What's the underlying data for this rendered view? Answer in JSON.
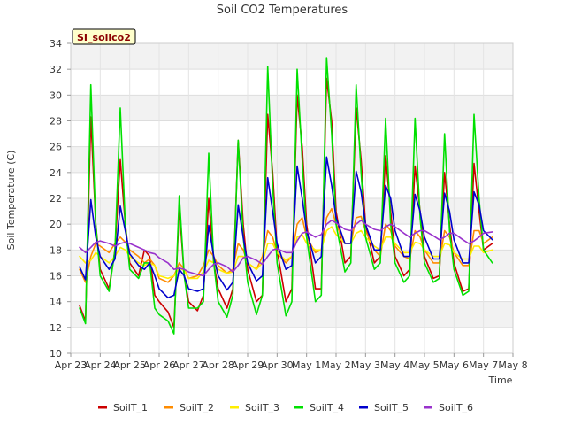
{
  "chart_data": {
    "type": "line",
    "title": "Soil CO2 Temperatures",
    "xlabel": "Time",
    "ylabel": "Soil Temperature (C)",
    "station_label": "SI_soilco2",
    "ylim": [
      10,
      34
    ],
    "yticks": [
      10,
      12,
      14,
      16,
      18,
      20,
      22,
      24,
      26,
      28,
      30,
      32,
      34
    ],
    "xlim": [
      0,
      15
    ],
    "xticks": [
      "Apr 23",
      "Apr 24",
      "Apr 25",
      "Apr 26",
      "Apr 27",
      "Apr 28",
      "Apr 29",
      "Apr 30",
      "May 1",
      "May 2",
      "May 3",
      "May 4",
      "May 5",
      "May 6",
      "May 7",
      "May 8"
    ],
    "grid": true,
    "legend_position": "bottom",
    "x": [
      0.3,
      0.5,
      0.68,
      0.85,
      1.0,
      1.3,
      1.5,
      1.68,
      1.85,
      2.0,
      2.3,
      2.5,
      2.68,
      2.85,
      3.0,
      3.3,
      3.5,
      3.68,
      3.85,
      4.0,
      4.3,
      4.5,
      4.68,
      4.85,
      5.0,
      5.3,
      5.5,
      5.68,
      5.85,
      6.0,
      6.3,
      6.5,
      6.68,
      6.85,
      7.0,
      7.3,
      7.5,
      7.68,
      7.85,
      8.0,
      8.3,
      8.5,
      8.68,
      8.85,
      9.0,
      9.3,
      9.5,
      9.68,
      9.85,
      10.0,
      10.3,
      10.5,
      10.68,
      10.85,
      11.0,
      11.3,
      11.5,
      11.68,
      11.85,
      12.0,
      12.3,
      12.5,
      12.68,
      12.85,
      13.0,
      13.3,
      13.5,
      13.68,
      13.85,
      14.0,
      14.3
    ],
    "series": [
      {
        "name": "SoilT_1",
        "color": "#cc0000",
        "values": [
          13.7,
          12.5,
          28.3,
          20.0,
          16.5,
          15.0,
          18.0,
          25.0,
          20.0,
          17.0,
          16.0,
          18.0,
          17.5,
          14.5,
          14.0,
          13.2,
          12.0,
          21.3,
          16.0,
          14.0,
          13.3,
          14.5,
          22.0,
          17.0,
          15.0,
          13.5,
          15.0,
          26.5,
          20.0,
          16.5,
          14.0,
          14.5,
          28.5,
          24.0,
          18.0,
          14.0,
          15.0,
          30.0,
          26.0,
          20.0,
          15.0,
          15.0,
          31.3,
          28.0,
          21.0,
          17.0,
          17.5,
          29.0,
          25.0,
          20.0,
          17.0,
          17.5,
          25.3,
          21.0,
          17.5,
          16.0,
          16.5,
          24.5,
          21.0,
          17.5,
          15.8,
          16.0,
          24.0,
          20.0,
          17.0,
          14.8,
          15.0,
          24.7,
          21.0,
          18.0,
          18.5
        ]
      },
      {
        "name": "SoilT_2",
        "color": "#ff8c00",
        "values": [
          16.5,
          15.5,
          17.5,
          18.5,
          18.3,
          17.8,
          18.5,
          19.0,
          18.6,
          18.0,
          17.5,
          17.0,
          17.3,
          16.8,
          15.8,
          15.5,
          16.0,
          17.0,
          16.5,
          15.8,
          16.0,
          16.8,
          18.0,
          17.5,
          16.8,
          16.2,
          16.5,
          18.5,
          18.0,
          17.0,
          16.5,
          17.5,
          19.5,
          19.0,
          17.8,
          17.0,
          17.5,
          20.0,
          20.5,
          19.0,
          17.8,
          18.0,
          20.5,
          21.2,
          20.0,
          18.5,
          18.5,
          20.5,
          20.6,
          19.5,
          18.0,
          17.5,
          20.0,
          19.5,
          18.3,
          17.5,
          17.3,
          19.5,
          19.0,
          18.0,
          17.0,
          17.0,
          19.5,
          19.0,
          17.8,
          16.8,
          16.8,
          19.5,
          19.5,
          18.5,
          19.0
        ]
      },
      {
        "name": "SoilT_3",
        "color": "#ffee00",
        "values": [
          17.5,
          17.0,
          17.2,
          17.8,
          17.5,
          17.0,
          17.5,
          18.2,
          18.0,
          17.5,
          17.0,
          16.8,
          17.0,
          16.8,
          16.0,
          15.8,
          16.0,
          16.6,
          16.4,
          15.8,
          15.8,
          16.3,
          17.2,
          17.0,
          16.5,
          16.2,
          16.3,
          17.5,
          17.5,
          17.0,
          16.5,
          17.0,
          18.5,
          18.5,
          17.8,
          17.2,
          17.5,
          19.0,
          19.2,
          18.5,
          18.0,
          18.0,
          19.5,
          19.8,
          19.2,
          18.5,
          18.5,
          19.3,
          19.5,
          19.0,
          18.3,
          18.0,
          19.0,
          19.0,
          18.5,
          17.8,
          17.8,
          18.6,
          18.5,
          18.0,
          17.5,
          17.5,
          18.5,
          18.4,
          17.8,
          17.3,
          17.3,
          18.3,
          18.3,
          17.8,
          18.0
        ]
      },
      {
        "name": "SoilT_4",
        "color": "#00e000",
        "values": [
          13.5,
          12.3,
          30.8,
          20.0,
          16.0,
          14.8,
          18.0,
          29.0,
          20.0,
          16.5,
          15.8,
          17.0,
          17.0,
          13.5,
          13.0,
          12.5,
          11.5,
          22.2,
          16.0,
          13.5,
          13.5,
          14.0,
          25.5,
          17.0,
          14.0,
          12.8,
          14.5,
          26.5,
          19.0,
          15.5,
          13.0,
          14.5,
          32.2,
          23.0,
          17.0,
          12.9,
          14.0,
          32.0,
          25.0,
          19.0,
          14.0,
          14.5,
          32.9,
          27.0,
          20.0,
          16.3,
          17.0,
          30.8,
          24.0,
          19.0,
          16.5,
          17.0,
          28.2,
          20.0,
          17.0,
          15.5,
          16.0,
          28.2,
          20.5,
          17.0,
          15.5,
          15.8,
          27.0,
          19.5,
          16.5,
          14.5,
          14.8,
          28.5,
          22.0,
          18.0,
          17.0
        ]
      },
      {
        "name": "SoilT_5",
        "color": "#0000cc",
        "values": [
          16.7,
          15.7,
          21.9,
          19.0,
          17.5,
          16.5,
          17.3,
          21.4,
          19.5,
          17.7,
          16.8,
          16.5,
          17.0,
          16.0,
          15.0,
          14.3,
          14.5,
          16.5,
          16.0,
          15.0,
          14.8,
          15.0,
          19.9,
          17.5,
          16.0,
          14.9,
          15.5,
          21.5,
          19.0,
          17.0,
          15.6,
          16.0,
          23.6,
          21.0,
          18.5,
          16.5,
          16.8,
          24.5,
          22.0,
          19.5,
          17.0,
          17.5,
          25.2,
          23.0,
          20.5,
          18.5,
          18.5,
          24.1,
          22.5,
          20.0,
          18.0,
          18.0,
          23.0,
          22.0,
          19.5,
          17.5,
          17.5,
          22.3,
          21.0,
          19.0,
          17.3,
          17.3,
          22.4,
          21.0,
          18.8,
          17.0,
          17.0,
          22.5,
          21.5,
          19.5,
          18.8
        ]
      },
      {
        "name": "SoilT_6",
        "color": "#9932cc",
        "values": [
          18.2,
          17.8,
          18.2,
          18.6,
          18.7,
          18.5,
          18.3,
          18.5,
          18.6,
          18.5,
          18.2,
          18.0,
          17.8,
          17.7,
          17.4,
          17.0,
          16.5,
          16.6,
          16.5,
          16.3,
          16.1,
          16.0,
          16.5,
          16.9,
          17.0,
          16.7,
          16.3,
          16.8,
          17.4,
          17.5,
          17.2,
          16.9,
          17.5,
          18.0,
          18.1,
          17.8,
          17.8,
          18.7,
          19.3,
          19.4,
          19.0,
          19.2,
          20.0,
          20.3,
          20.1,
          19.6,
          19.5,
          20.0,
          20.3,
          20.0,
          19.6,
          19.5,
          19.8,
          20.0,
          19.8,
          19.3,
          19.0,
          19.3,
          19.5,
          19.5,
          19.1,
          18.8,
          19.0,
          19.3,
          19.3,
          18.8,
          18.5,
          18.7,
          19.0,
          19.3,
          19.4
        ]
      }
    ]
  }
}
